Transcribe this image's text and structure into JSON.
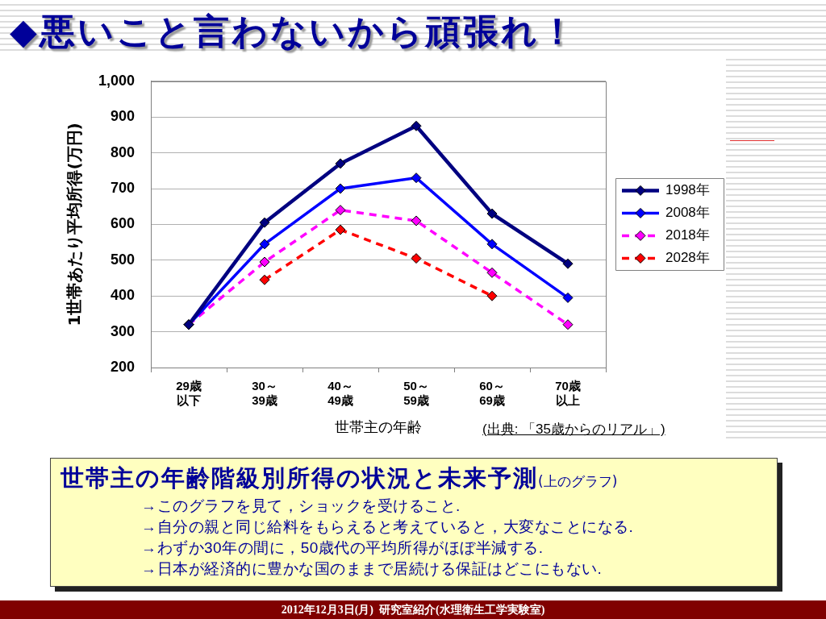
{
  "chart_data": {
    "type": "line",
    "title": "◆悪いこと言わないから頑張れ！",
    "xlabel": "世帯主の年齢",
    "ylabel": "1世帯あたり平均所得(万円)",
    "categories": [
      "29歳以下",
      "30～39歳",
      "40～49歳",
      "50～59歳",
      "60～69歳",
      "70歳以上"
    ],
    "series": [
      {
        "name": "1998年",
        "color": "#000080",
        "values": [
          320,
          605,
          770,
          875,
          630,
          490
        ]
      },
      {
        "name": "2008年",
        "color": "#0000ff",
        "values": [
          320,
          545,
          700,
          730,
          545,
          395
        ]
      },
      {
        "name": "2018年",
        "color": "#ff00ff",
        "line_style": "dashed",
        "values": [
          320,
          495,
          640,
          610,
          465,
          320
        ]
      },
      {
        "name": "2028年",
        "color": "#ff0000",
        "line_style": "dashed",
        "values": [
          null,
          445,
          585,
          505,
          400,
          null
        ]
      }
    ],
    "ylim": [
      200,
      1000
    ],
    "yticks": [
      200,
      300,
      400,
      500,
      600,
      700,
      800,
      900,
      {
        "value": 1000,
        "label": "1,000"
      }
    ],
    "grid": "y",
    "legend": "right",
    "marker": "diamond",
    "line_style": "solid",
    "annotations": [
      "(出典: 「35歳からのリアル」)",
      "世帯主の年齢階級別所得の状況と未来予測",
      "(上のグラフ)",
      "→このグラフを見て，ショックを受けること.",
      "→自分の親と同じ給料をもらえると考えていると，大変なことになる.",
      "→わずか30年の間に，50歳代の平均所得がほぼ半減する.",
      "→日本が経済的に豊かな国のままで居続ける保証はどこにもない.",
      "2012年12月3日(月)  研究室紹介(水理衛生工学実験室)"
    ]
  }
}
